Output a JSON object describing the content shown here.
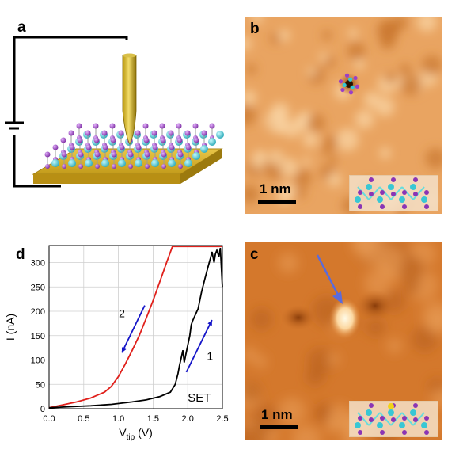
{
  "panels": {
    "a": {
      "label": "a"
    },
    "b": {
      "label": "b",
      "scalebar": "1 nm"
    },
    "c": {
      "label": "c",
      "scalebar": "1 nm"
    },
    "d": {
      "label": "d"
    }
  },
  "chart_data": {
    "type": "line",
    "xlabel_main": "V",
    "xlabel_sub": "tip",
    "xlabel_unit": "(V)",
    "ylabel": "I (nA)",
    "xlim": [
      0,
      2.5
    ],
    "ylim": [
      0,
      335
    ],
    "xticks": [
      "0.0",
      "0.5",
      "1.0",
      "1.5",
      "2.0",
      "2.5"
    ],
    "yticks": [
      "0",
      "50",
      "100",
      "150",
      "200",
      "250",
      "300"
    ],
    "grid": true,
    "annotation": "SET",
    "arrow_labels": [
      "2",
      "1"
    ],
    "series": [
      {
        "color": "#e0201b",
        "x": [
          0.0,
          0.2,
          0.4,
          0.6,
          0.8,
          0.9,
          1.0,
          1.1,
          1.2,
          1.3,
          1.4,
          1.5,
          1.6,
          1.7,
          1.78,
          1.85,
          2.0,
          2.2,
          2.4,
          2.5
        ],
        "y": [
          2,
          8,
          14,
          22,
          34,
          46,
          66,
          92,
          120,
          150,
          185,
          222,
          262,
          302,
          333,
          333,
          333,
          333,
          333,
          333
        ]
      },
      {
        "color": "#000000",
        "x": [
          0.0,
          0.3,
          0.6,
          0.9,
          1.2,
          1.4,
          1.6,
          1.75,
          1.82,
          1.86,
          1.88,
          1.9,
          1.93,
          1.95,
          1.97,
          2.0,
          2.03,
          2.05,
          2.07,
          2.1,
          2.15,
          2.2,
          2.25,
          2.3,
          2.33,
          2.35,
          2.38,
          2.4,
          2.42,
          2.45,
          2.47,
          2.5
        ],
        "y": [
          2,
          4,
          6,
          9,
          14,
          18,
          25,
          34,
          50,
          72,
          88,
          100,
          120,
          95,
          110,
          130,
          150,
          172,
          180,
          190,
          205,
          240,
          268,
          295,
          310,
          322,
          300,
          318,
          325,
          312,
          330,
          250
        ]
      }
    ]
  }
}
